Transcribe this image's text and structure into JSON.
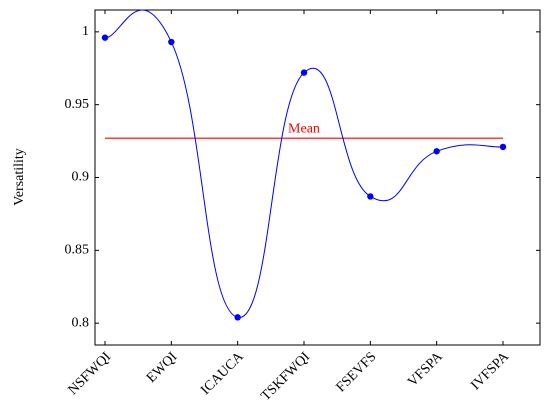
{
  "chart_data": {
    "type": "line",
    "y_label": "Versatility",
    "categories": [
      "NSFWQI",
      "EWQI",
      "ICAUCA",
      "TSKFWQI",
      "FSEVFS",
      "VFSPA",
      "IVFSPA"
    ],
    "series": [
      {
        "name": "Versatility",
        "color": "#0000ff",
        "values": [
          0.996,
          0.993,
          0.804,
          0.972,
          0.887,
          0.918,
          0.921
        ]
      }
    ],
    "mean": {
      "value": 0.927,
      "label": "Mean",
      "color": "#ff0000"
    },
    "ylim": [
      0.785,
      1.015
    ],
    "yticks": [
      0.8,
      0.85,
      0.9,
      0.95,
      1
    ],
    "smooth": true
  }
}
